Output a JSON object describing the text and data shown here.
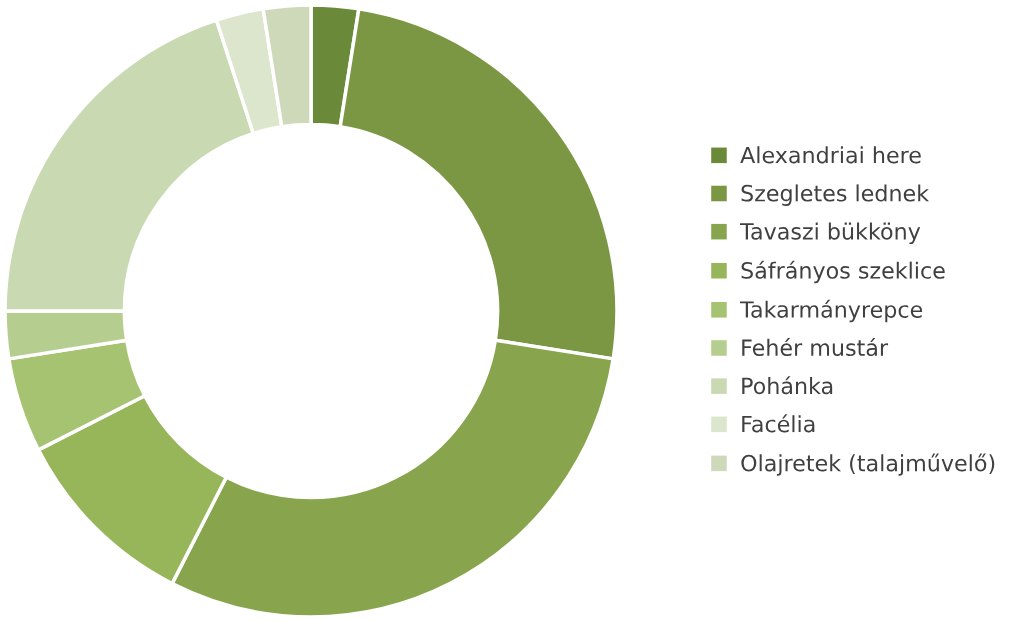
{
  "chart_data": {
    "type": "donut",
    "categories": [
      "Alexandriai here",
      "Szegletes lednek",
      "Tavaszi bükköny",
      "Sáfrányos szeklice",
      "Takarmányrepce",
      "Fehér mustár",
      "Pohánka",
      "Facélia",
      "Olajretek (talajművelő)"
    ],
    "values": [
      2.5,
      25,
      30,
      10,
      5,
      2.5,
      20,
      2.5,
      2.5
    ],
    "colors": [
      "#6a8a3a",
      "#7b9744",
      "#88a54e",
      "#97b65a",
      "#a5c370",
      "#b5ce90",
      "#c9d9b2",
      "#dbe6cc",
      "#ced9ba"
    ],
    "legend": "right"
  }
}
